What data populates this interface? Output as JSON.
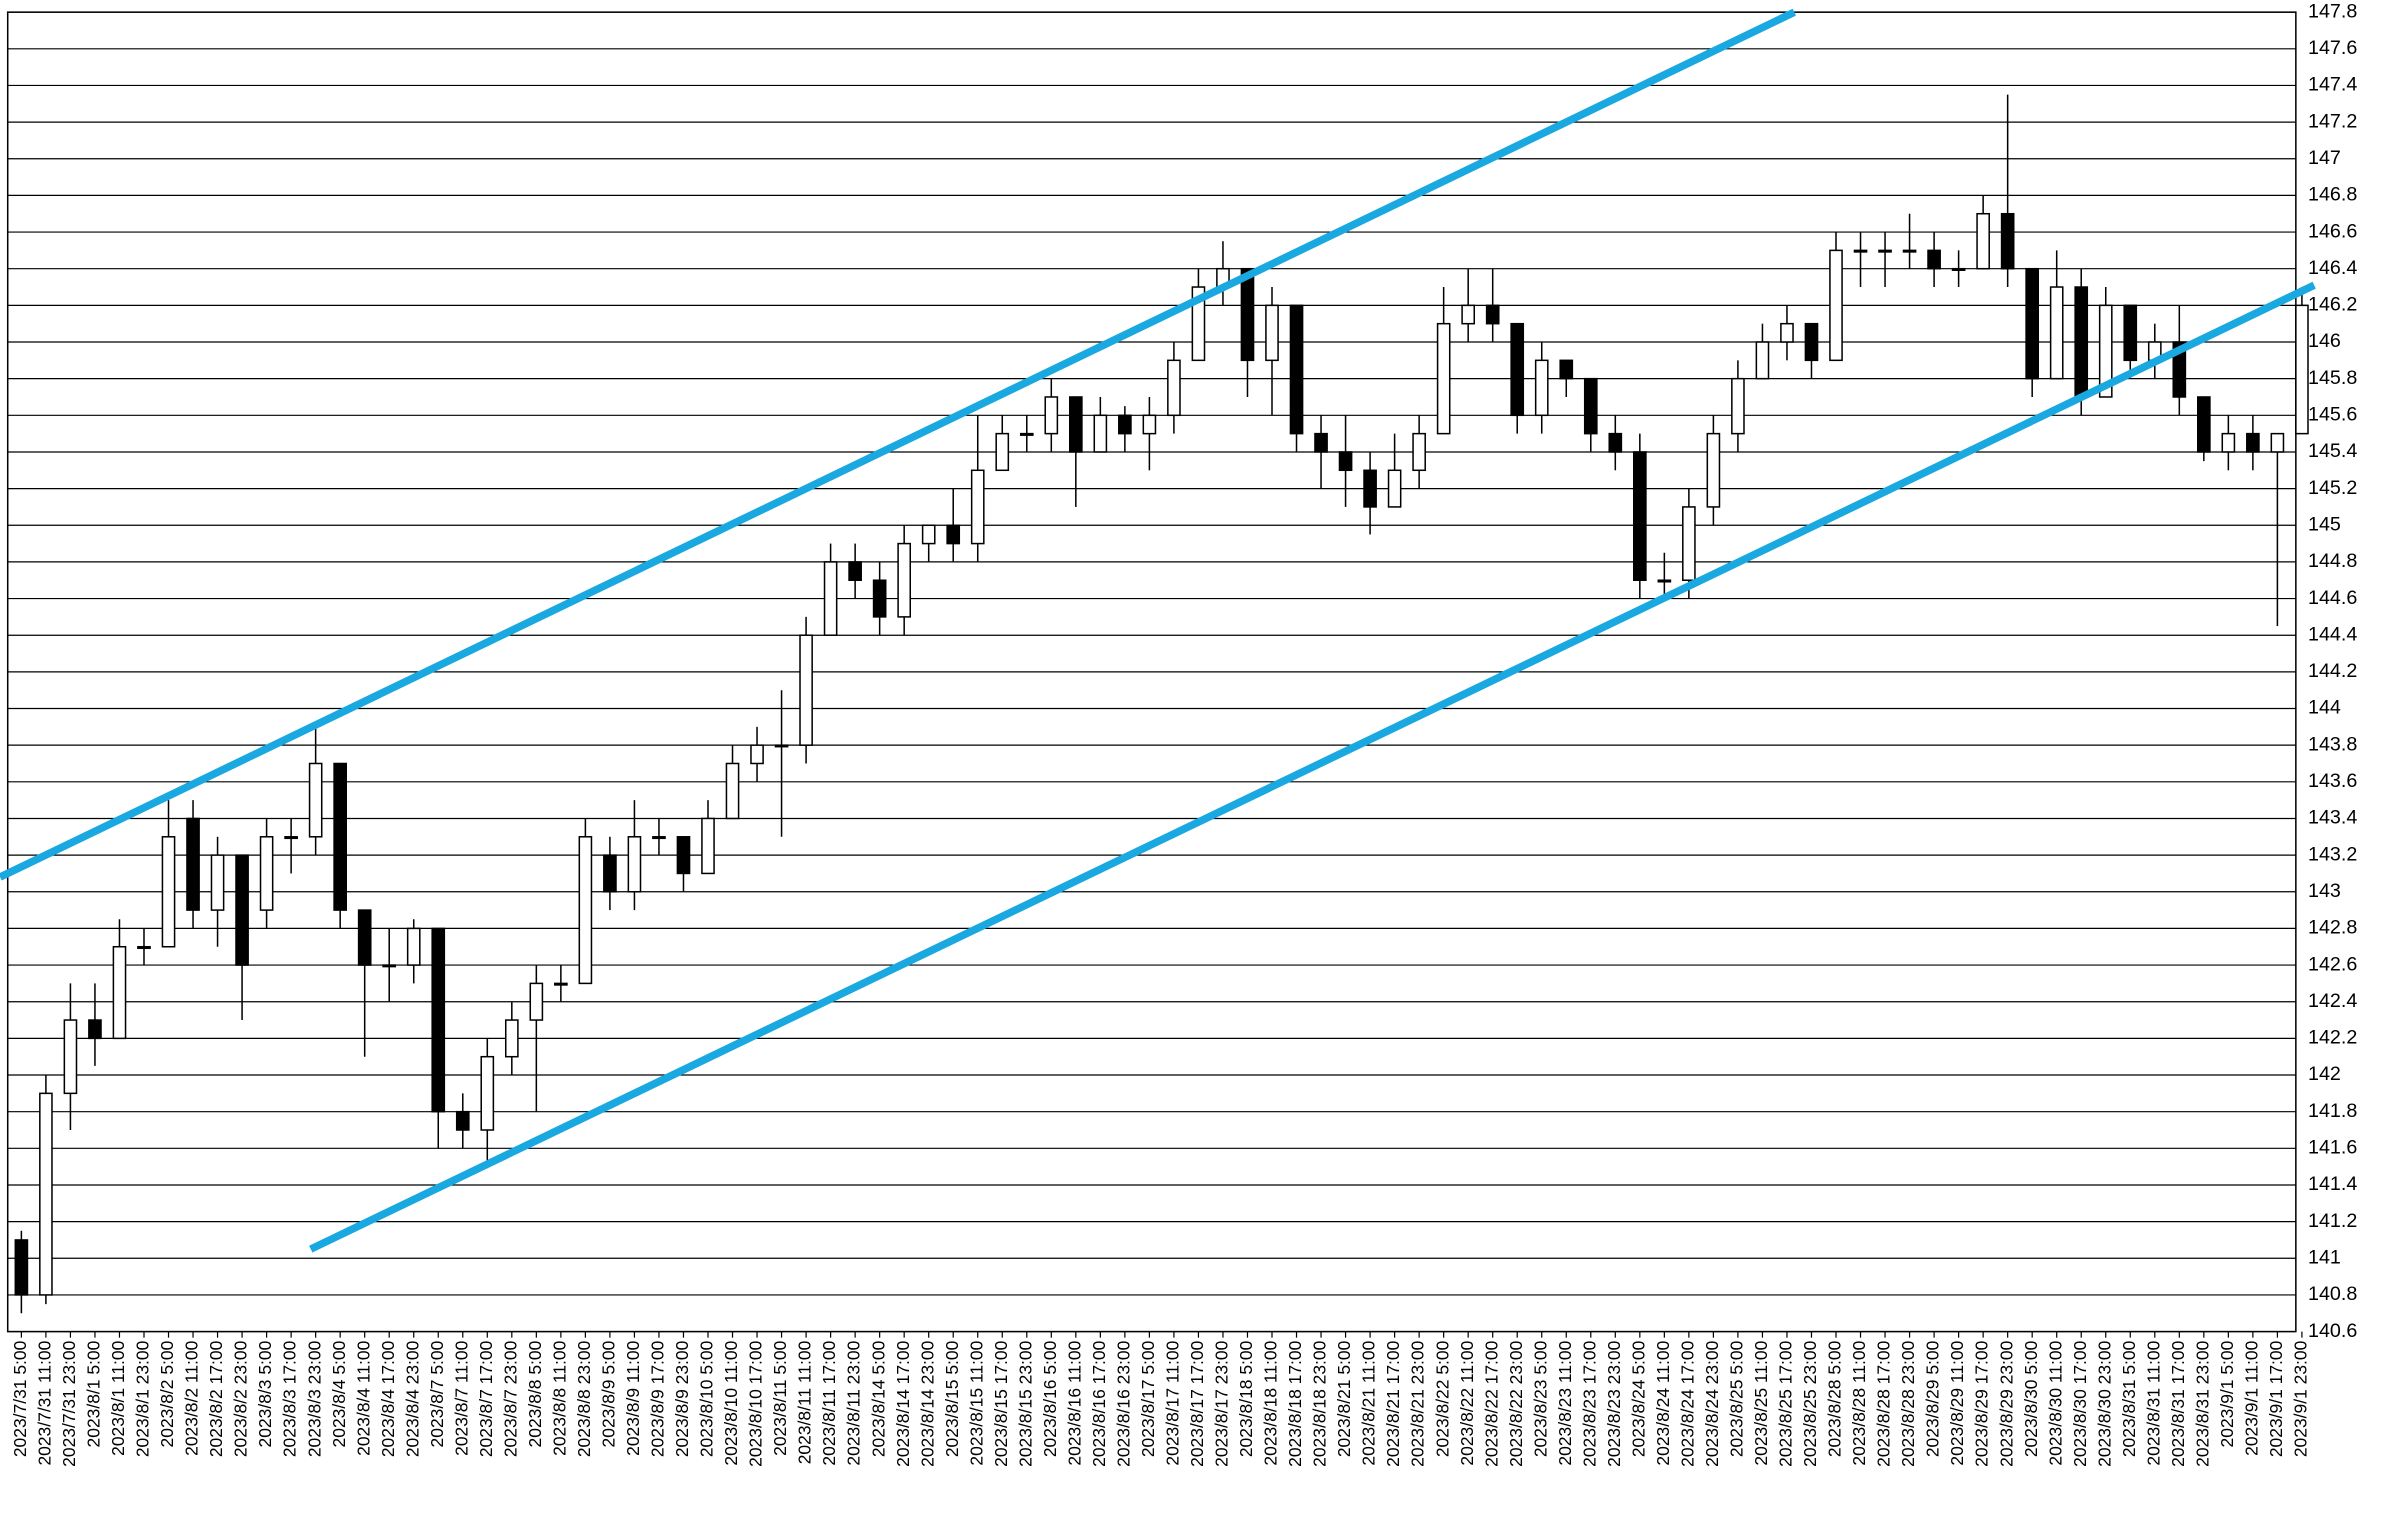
{
  "chart_data": {
    "type": "candlestick",
    "categories": [
      "2023/7/31 5:00",
      "2023/7/31 11:00",
      "2023/7/31 23:00",
      "2023/8/1 5:00",
      "2023/8/1 11:00",
      "2023/8/1 23:00",
      "2023/8/2 5:00",
      "2023/8/2 11:00",
      "2023/8/2 17:00",
      "2023/8/2 23:00",
      "2023/8/3 5:00",
      "2023/8/3 17:00",
      "2023/8/3 23:00",
      "2023/8/4 5:00",
      "2023/8/4 11:00",
      "2023/8/4 17:00",
      "2023/8/4 23:00",
      "2023/8/7 5:00",
      "2023/8/7 11:00",
      "2023/8/7 17:00",
      "2023/8/7 23:00",
      "2023/8/8 5:00",
      "2023/8/8 11:00",
      "2023/8/8 23:00",
      "2023/8/9 5:00",
      "2023/8/9 11:00",
      "2023/8/9 17:00",
      "2023/8/9 23:00",
      "2023/8/10 5:00",
      "2023/8/10 11:00",
      "2023/8/10 17:00",
      "2023/8/11 5:00",
      "2023/8/11 11:00",
      "2023/8/11 17:00",
      "2023/8/11 23:00",
      "2023/8/14 5:00",
      "2023/8/14 17:00",
      "2023/8/14 23:00",
      "2023/8/15 5:00",
      "2023/8/15 11:00",
      "2023/8/15 17:00",
      "2023/8/15 23:00",
      "2023/8/16 5:00",
      "2023/8/16 11:00",
      "2023/8/16 17:00",
      "2023/8/16 23:00",
      "2023/8/17 5:00",
      "2023/8/17 11:00",
      "2023/8/17 17:00",
      "2023/8/17 23:00",
      "2023/8/18 5:00",
      "2023/8/18 11:00",
      "2023/8/18 17:00",
      "2023/8/18 23:00",
      "2023/8/21 5:00",
      "2023/8/21 11:00",
      "2023/8/21 17:00",
      "2023/8/21 23:00",
      "2023/8/22 5:00",
      "2023/8/22 11:00",
      "2023/8/22 17:00",
      "2023/8/22 23:00",
      "2023/8/23 5:00",
      "2023/8/23 11:00",
      "2023/8/23 17:00",
      "2023/8/23 23:00",
      "2023/8/24 5:00",
      "2023/8/24 11:00",
      "2023/8/24 17:00",
      "2023/8/24 23:00",
      "2023/8/25 5:00",
      "2023/8/25 11:00",
      "2023/8/25 17:00",
      "2023/8/25 23:00",
      "2023/8/28 5:00",
      "2023/8/28 11:00",
      "2023/8/28 17:00",
      "2023/8/28 23:00",
      "2023/8/29 5:00",
      "2023/8/29 11:00",
      "2023/8/29 17:00",
      "2023/8/29 23:00",
      "2023/8/30 5:00",
      "2023/8/30 11:00",
      "2023/8/30 17:00",
      "2023/8/30 23:00",
      "2023/8/31 5:00",
      "2023/8/31 11:00",
      "2023/8/31 17:00",
      "2023/8/31 23:00",
      "2023/9/1 5:00",
      "2023/9/1 11:00",
      "2023/9/1 17:00",
      "2023/9/1 23:00"
    ],
    "open": [
      141.1,
      140.8,
      141.9,
      142.3,
      142.2,
      142.7,
      142.7,
      143.4,
      142.9,
      143.2,
      142.9,
      143.3,
      143.3,
      143.7,
      142.9,
      142.6,
      142.6,
      142.8,
      141.8,
      141.7,
      142.1,
      142.3,
      142.5,
      142.5,
      143.2,
      143.0,
      143.3,
      143.3,
      143.1,
      143.4,
      143.7,
      143.8,
      143.8,
      144.4,
      144.8,
      144.7,
      144.5,
      144.9,
      145.0,
      144.9,
      145.3,
      145.5,
      145.5,
      145.7,
      145.4,
      145.6,
      145.5,
      145.6,
      145.9,
      146.3,
      146.4,
      145.9,
      146.2,
      145.5,
      145.4,
      145.3,
      145.1,
      145.3,
      145.5,
      146.1,
      146.2,
      146.1,
      145.6,
      145.9,
      145.8,
      145.5,
      145.4,
      144.7,
      144.7,
      145.1,
      145.5,
      145.8,
      146.0,
      146.1,
      145.9,
      146.5,
      146.5,
      146.5,
      146.5,
      146.4,
      146.4,
      146.7,
      146.4,
      145.8,
      146.3,
      145.7,
      146.2,
      145.9,
      146.0,
      145.7,
      145.4,
      145.5,
      145.4,
      145.5
    ],
    "high": [
      141.15,
      142.0,
      142.5,
      142.5,
      142.85,
      142.8,
      143.5,
      143.5,
      143.3,
      143.2,
      143.4,
      143.4,
      143.9,
      143.7,
      142.9,
      142.8,
      142.85,
      142.8,
      141.9,
      142.2,
      142.4,
      142.6,
      142.6,
      143.4,
      143.3,
      143.5,
      143.4,
      143.3,
      143.5,
      143.8,
      143.9,
      144.1,
      144.5,
      144.9,
      144.9,
      144.8,
      145.0,
      145.0,
      145.2,
      145.6,
      145.6,
      145.6,
      145.8,
      145.7,
      145.7,
      145.65,
      145.7,
      146.0,
      146.4,
      146.55,
      146.4,
      146.3,
      146.2,
      145.6,
      145.6,
      145.4,
      145.5,
      145.6,
      146.3,
      146.4,
      146.4,
      146.1,
      146.0,
      145.9,
      145.8,
      145.6,
      145.5,
      144.85,
      145.2,
      145.6,
      145.9,
      146.1,
      146.2,
      146.1,
      146.6,
      146.6,
      146.6,
      146.7,
      146.6,
      146.5,
      146.8,
      147.35,
      146.4,
      146.5,
      146.4,
      146.3,
      146.2,
      146.1,
      146.2,
      145.7,
      145.6,
      145.6,
      145.5,
      146.3
    ],
    "low": [
      140.7,
      140.75,
      141.7,
      142.05,
      142.2,
      142.6,
      142.7,
      142.8,
      142.7,
      142.3,
      142.8,
      143.1,
      143.2,
      142.8,
      142.1,
      142.4,
      142.5,
      141.6,
      141.6,
      141.5,
      142.0,
      141.8,
      142.4,
      142.5,
      142.9,
      142.9,
      143.2,
      143.0,
      143.1,
      143.4,
      143.6,
      143.3,
      143.7,
      144.4,
      144.6,
      144.4,
      144.4,
      144.8,
      144.8,
      144.8,
      145.3,
      145.4,
      145.4,
      145.1,
      145.4,
      145.4,
      145.3,
      145.5,
      145.9,
      146.2,
      145.7,
      145.6,
      145.4,
      145.2,
      145.1,
      144.95,
      145.1,
      145.2,
      145.5,
      146.0,
      146.0,
      145.5,
      145.5,
      145.7,
      145.4,
      145.3,
      144.6,
      144.6,
      144.6,
      145.0,
      145.4,
      145.8,
      145.9,
      145.8,
      145.9,
      146.3,
      146.3,
      146.4,
      146.3,
      146.3,
      146.4,
      146.3,
      145.7,
      145.8,
      145.6,
      145.7,
      145.8,
      145.8,
      145.6,
      145.35,
      145.3,
      145.3,
      144.45,
      145.5
    ],
    "close": [
      140.8,
      141.9,
      142.3,
      142.2,
      142.7,
      142.7,
      143.3,
      142.9,
      143.2,
      142.6,
      143.3,
      143.3,
      143.7,
      142.9,
      142.6,
      142.6,
      142.8,
      141.8,
      141.7,
      142.1,
      142.3,
      142.5,
      142.5,
      143.3,
      143.0,
      143.3,
      143.3,
      143.1,
      143.4,
      143.7,
      143.8,
      143.8,
      144.4,
      144.8,
      144.7,
      144.5,
      144.9,
      145.0,
      144.9,
      145.3,
      145.5,
      145.5,
      145.7,
      145.4,
      145.6,
      145.5,
      145.6,
      145.9,
      146.3,
      146.4,
      145.9,
      146.2,
      145.5,
      145.4,
      145.3,
      145.1,
      145.3,
      145.5,
      146.1,
      146.2,
      146.1,
      145.6,
      145.9,
      145.8,
      145.5,
      145.4,
      144.7,
      144.7,
      145.1,
      145.5,
      145.8,
      146.0,
      146.1,
      145.9,
      146.5,
      146.5,
      146.5,
      146.5,
      146.4,
      146.4,
      146.7,
      146.4,
      145.8,
      146.3,
      145.7,
      146.2,
      145.9,
      146.0,
      145.7,
      145.4,
      145.5,
      145.4,
      145.5,
      146.2
    ],
    "ylim": [
      140.6,
      147.8
    ],
    "yticks": [
      140.6,
      140.8,
      141,
      141.2,
      141.4,
      141.6,
      141.8,
      142,
      142.2,
      142.4,
      142.6,
      142.8,
      143,
      143.2,
      143.4,
      143.6,
      143.8,
      144,
      144.2,
      144.4,
      144.6,
      144.8,
      145,
      145.2,
      145.4,
      145.6,
      145.8,
      146,
      146.2,
      146.4,
      146.6,
      146.8,
      147,
      147.2,
      147.4,
      147.6,
      147.8
    ],
    "grid": true,
    "up_color": "#ffffff",
    "down_color": "#000000",
    "lines": [
      {
        "color": "#1aa8e0",
        "x": [
          -0.87,
          72.3
        ],
        "y": [
          143.08,
          147.8
        ]
      },
      {
        "color": "#1aa8e0",
        "x": [
          11.8,
          93.5
        ],
        "y": [
          141.05,
          146.31
        ]
      }
    ]
  }
}
